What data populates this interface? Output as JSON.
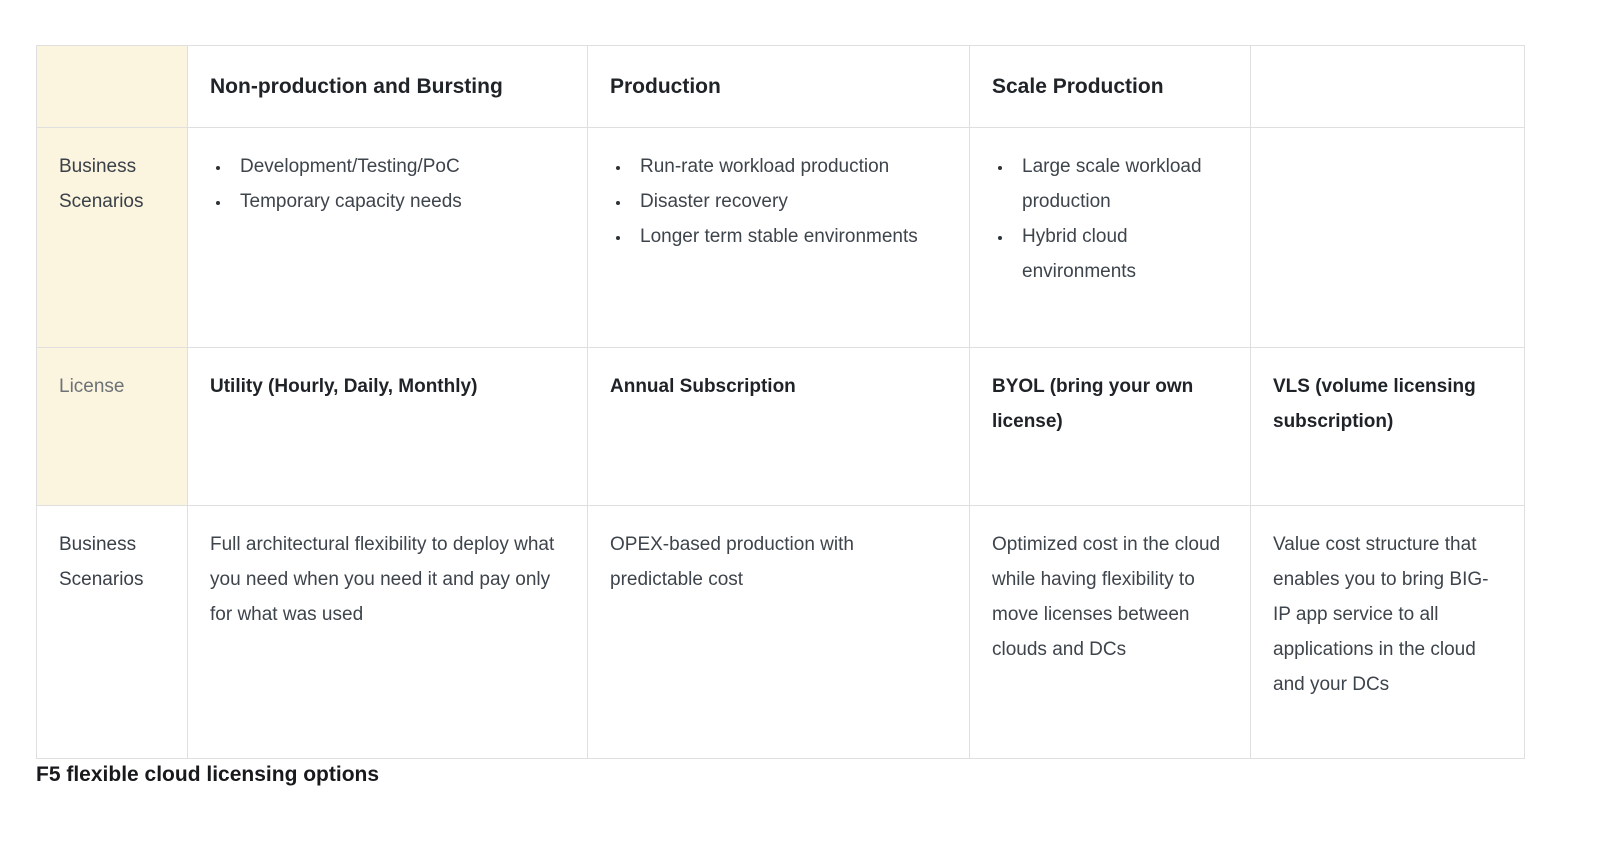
{
  "header": {
    "corner": "",
    "non_production": "Non-production and Bursting",
    "production": "Production",
    "scale_production": "Scale Production",
    "last": ""
  },
  "row_business_scenarios_top": {
    "label": "Business Scenarios",
    "non_production": [
      "Development/Testing/PoC",
      "Temporary capacity needs"
    ],
    "production": [
      "Run-rate workload production",
      "Disaster recovery",
      "Longer term stable environments"
    ],
    "scale_production": [
      "Large scale workload production",
      "Hybrid cloud environments"
    ],
    "last": ""
  },
  "row_license": {
    "label": "License",
    "non_production": "Utility (Hourly, Daily, Monthly)",
    "production": "Annual Subscription",
    "scale_production": "BYOL (bring your own license)",
    "last": "VLS (volume licensing subscription)"
  },
  "row_business_scenarios_bottom": {
    "label": "Business Scenarios",
    "non_production": "Full architectural flexibility to deploy what you need when you need it and pay only for what was used",
    "production": "OPEX-based production with predictable cost",
    "scale_production": "Optimized cost in the cloud while having flexibility to move licenses between clouds and DCs",
    "last": "Value cost structure that enables you to bring BIG-IP app service to all applications in the cloud and your DCs"
  },
  "caption": "F5 flexible cloud licensing options",
  "colors": {
    "label_column_bg": "#fbf4de",
    "border": "#dfdfdf",
    "heading_text": "#202428",
    "body_text": "#3e444b",
    "license_label_text": "#6d7277",
    "caption_text": "#17191c"
  }
}
